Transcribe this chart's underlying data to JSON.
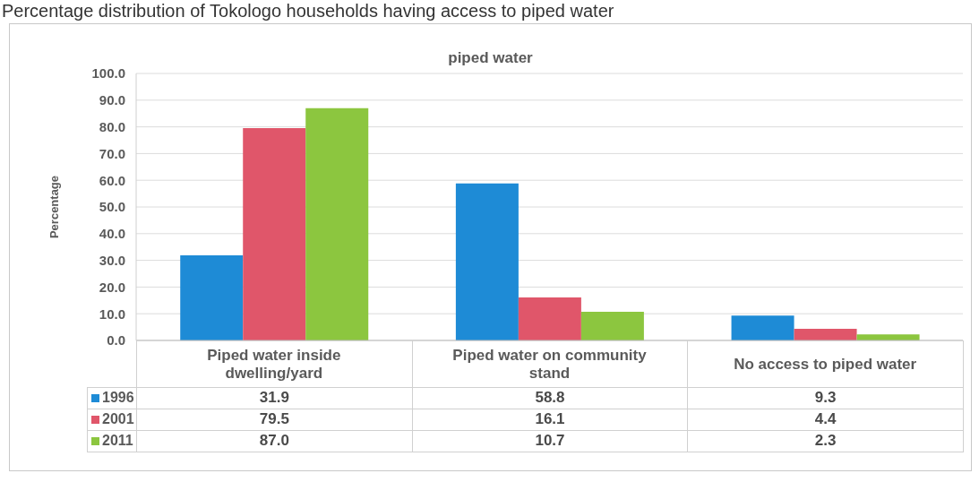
{
  "chart_data": {
    "type": "bar",
    "title": "Percentage distribution of Tokologo households having access to piped water",
    "subtitle": "piped water",
    "ylabel": "Percentage",
    "categories": [
      "Piped water inside dwelling/yard",
      "Piped water on community stand",
      "No access to piped water"
    ],
    "series": [
      {
        "name": "1996",
        "color": "#1e8bd6",
        "values": [
          31.9,
          58.8,
          9.3
        ],
        "value_labels": [
          "31.9",
          "58.8",
          "9.3"
        ]
      },
      {
        "name": "2001",
        "color": "#e0566a",
        "values": [
          79.5,
          16.1,
          4.4
        ],
        "value_labels": [
          "79.5",
          "16.1",
          "4.4"
        ]
      },
      {
        "name": "2011",
        "color": "#8cc63f",
        "values": [
          87.0,
          10.7,
          2.3
        ],
        "value_labels": [
          "87.0",
          "10.7",
          "2.3"
        ]
      }
    ],
    "ylim": [
      0,
      100
    ],
    "yticks": [
      {
        "value": 0,
        "label": "0.0"
      },
      {
        "value": 10,
        "label": "10.0"
      },
      {
        "value": 20,
        "label": "20.0"
      },
      {
        "value": 30,
        "label": "30.0"
      },
      {
        "value": 40,
        "label": "40.0"
      },
      {
        "value": 50,
        "label": "50.0"
      },
      {
        "value": 60,
        "label": "60.0"
      },
      {
        "value": 70,
        "label": "70.0"
      },
      {
        "value": 80,
        "label": "80.0"
      },
      {
        "value": 90,
        "label": "90.0"
      },
      {
        "value": 100,
        "label": "100.0"
      }
    ],
    "grid": "y",
    "legend": "bottom"
  }
}
